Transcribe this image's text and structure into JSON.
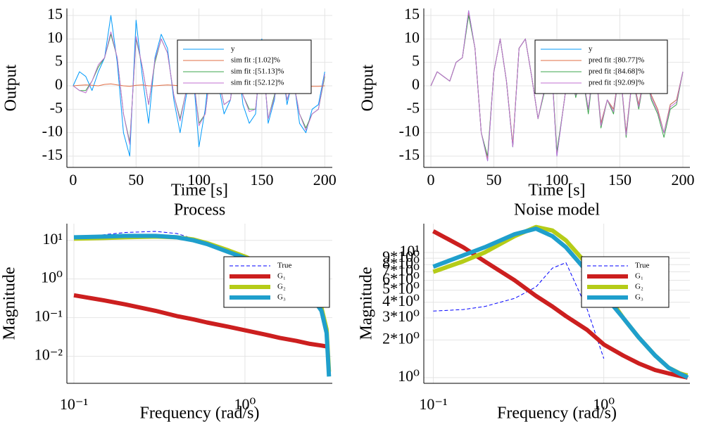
{
  "chart_data": [
    {
      "type": "line",
      "xlabel": "Time [s]",
      "ylabel": "Output",
      "x": [
        0,
        5,
        10,
        15,
        20,
        25,
        30,
        35,
        40,
        45,
        50,
        55,
        60,
        65,
        70,
        75,
        80,
        85,
        90,
        95,
        100,
        105,
        110,
        115,
        120,
        125,
        130,
        135,
        140,
        145,
        150,
        155,
        160,
        165,
        170,
        175,
        180,
        185,
        190,
        195,
        200
      ],
      "series": [
        {
          "name": "y",
          "color": "#009afa",
          "values": [
            0,
            3,
            2,
            -1,
            3,
            6,
            15,
            5,
            -10,
            -15,
            14,
            2,
            -8,
            6,
            11,
            8,
            -3,
            -10,
            -2,
            4,
            -13,
            -5,
            8,
            1,
            -6,
            -3,
            8,
            -4,
            -8,
            -6,
            10,
            -8,
            -3,
            7,
            -4,
            2,
            -8,
            -10,
            -5,
            -4,
            3
          ]
        },
        {
          "name": "sim fit :[1.02]%",
          "color": "#e26f46",
          "values": [
            0,
            0.1,
            0.2,
            0.1,
            0,
            0.3,
            0.4,
            0.2,
            0,
            -0.1,
            0.1,
            0.2,
            0,
            0,
            0.1,
            0.2,
            0.1,
            0,
            -0.1,
            0,
            -0.2,
            -0.1,
            0,
            0.1,
            0,
            -0.1,
            0,
            0.1,
            -0.1,
            -0.2,
            0,
            -0.1,
            0,
            0.1,
            0,
            -0.1,
            -0.2,
            -0.2,
            -0.1,
            -0.1,
            0
          ]
        },
        {
          "name": "sim fit :[51.13]%",
          "color": "#3da44d",
          "values": [
            0,
            -1,
            -1,
            1,
            4,
            6,
            11,
            6,
            -6,
            -12,
            10,
            4,
            -4,
            5,
            10,
            7,
            -2,
            -7,
            -1,
            3,
            -8,
            -6,
            5,
            2,
            -4,
            -3,
            6,
            -2,
            -5,
            -5,
            8,
            -7,
            -2,
            5,
            -3,
            1,
            -6,
            -9,
            -6,
            -5,
            2
          ]
        },
        {
          "name": "sim fit :[52.12]%",
          "color": "#c271d2",
          "values": [
            0,
            -1,
            -1.5,
            1,
            4.5,
            6,
            11.5,
            6,
            -6,
            -12.5,
            10.5,
            4,
            -4,
            5.5,
            10,
            7,
            -2,
            -7.5,
            -1,
            3,
            -8.5,
            -6,
            5,
            2,
            -4,
            -3,
            6.5,
            -2,
            -5.5,
            -5,
            8,
            -7,
            -2.5,
            5,
            -3,
            1,
            -6,
            -9.5,
            -6,
            -5,
            2.5
          ]
        }
      ],
      "xlim": [
        -5,
        206
      ],
      "xticks": [
        0,
        50,
        100,
        150,
        200
      ],
      "ylim": [
        -17.4,
        16.5
      ],
      "yticks": [
        -15,
        -10,
        -5,
        0,
        5,
        10,
        15
      ],
      "grid": true,
      "legend": "top-right"
    },
    {
      "type": "line",
      "xlabel": "Time [s]",
      "ylabel": "Output",
      "x": [
        0,
        5,
        10,
        15,
        20,
        25,
        30,
        35,
        40,
        45,
        50,
        55,
        60,
        65,
        70,
        75,
        80,
        85,
        90,
        95,
        100,
        105,
        110,
        115,
        120,
        125,
        130,
        135,
        140,
        145,
        150,
        155,
        160,
        165,
        170,
        175,
        180,
        185,
        190,
        195,
        200
      ],
      "series": [
        {
          "name": "y",
          "color": "#009afa",
          "values": [
            0,
            3,
            2,
            1,
            5,
            6,
            16,
            8,
            -10,
            -16,
            3,
            10,
            1,
            -13,
            8,
            10,
            2,
            -7,
            -1,
            8,
            -15,
            -5,
            5,
            -2,
            3,
            -5,
            6,
            -8,
            -3,
            -5,
            4,
            -10,
            2,
            -4,
            3,
            -2,
            -5,
            -10,
            -4,
            -3,
            3
          ]
        },
        {
          "name": "pred fit :[80.77]%",
          "color": "#e26f46",
          "values": [
            0,
            3,
            2,
            1,
            5,
            6,
            15.5,
            8,
            -10,
            -15.5,
            3,
            10,
            1,
            -12.5,
            8,
            10,
            2,
            -7,
            -1,
            8,
            -14.5,
            -5,
            5,
            -2,
            3,
            -5,
            6,
            -8,
            -3,
            -5,
            4,
            -10,
            2,
            -4,
            3,
            -2,
            -5,
            -10,
            -4,
            -3,
            3
          ]
        },
        {
          "name": "pred fit :[84.68]%",
          "color": "#3da44d",
          "values": [
            0,
            3,
            2,
            1,
            5,
            6,
            15,
            8,
            -10,
            -15,
            3,
            10,
            1,
            -13,
            8,
            10,
            2,
            -7,
            -1.5,
            8,
            -14,
            -5,
            5,
            -2.5,
            3,
            -6,
            6,
            -9,
            -3,
            -6,
            4,
            -11,
            2,
            -5,
            3,
            -3,
            -6,
            -11,
            -5,
            -4,
            3
          ]
        },
        {
          "name": "pred fit :[92.09]%",
          "color": "#c271d2",
          "values": [
            0,
            3,
            2,
            1,
            5,
            6,
            16,
            8,
            -10,
            -16,
            3,
            10,
            1,
            -13,
            8,
            10,
            2,
            -7,
            -1,
            8,
            -15,
            -5,
            5,
            -2,
            3,
            -5,
            6,
            -8.5,
            -3,
            -5.5,
            4,
            -10.5,
            2,
            -4.5,
            3,
            -2.5,
            -5.5,
            -10,
            -4.5,
            -3.5,
            3
          ]
        }
      ],
      "xlim": [
        -5.6,
        205.6
      ],
      "xticks": [
        0,
        50,
        100,
        150,
        200
      ],
      "ylim": [
        -17.4,
        16.5
      ],
      "yticks": [
        -15,
        -10,
        -5,
        0,
        5,
        10,
        15
      ],
      "grid": true,
      "legend": "top-right"
    },
    {
      "type": "line",
      "title": "Process",
      "xlabel": "Frequency (rad/s)",
      "ylabel": "Magnitude",
      "x": [
        0.1,
        0.15,
        0.2,
        0.3,
        0.4,
        0.5,
        0.6,
        0.8,
        1.0,
        1.3,
        1.6,
        2.0,
        2.4,
        2.8,
        3.0,
        3.1
      ],
      "series": [
        {
          "name": "True",
          "color": "#0000ff",
          "linestyle": "dash",
          "values": [
            12,
            14,
            16,
            17,
            15,
            11,
            8,
            5.2,
            3.5,
            2.1,
            1.35,
            0.75,
            0.4,
            0.15,
            0.05,
            0.01
          ]
        },
        {
          "name": "G₁",
          "color": "#cc1f1f",
          "values": [
            0.38,
            0.28,
            0.22,
            0.15,
            0.11,
            0.09,
            0.075,
            0.058,
            0.047,
            0.037,
            0.03,
            0.025,
            0.021,
            0.019,
            0.018,
            0.018
          ]
        },
        {
          "name": "G₂",
          "color": "#b5cc18",
          "values": [
            11,
            11.5,
            12,
            12.5,
            12,
            10.5,
            8.5,
            5.5,
            3.8,
            2.3,
            1.5,
            0.85,
            0.45,
            0.18,
            0.05,
            0.004
          ]
        },
        {
          "name": "G₃",
          "color": "#1f9fcc",
          "values": [
            12,
            12.5,
            13,
            13,
            12,
            10,
            8,
            5,
            3.5,
            2.1,
            1.35,
            0.75,
            0.4,
            0.15,
            0.04,
            0.003
          ]
        }
      ],
      "xlog": true,
      "ylog": true,
      "xlim": [
        0.091,
        3.24
      ],
      "xticks": [
        {
          "value": 0.1,
          "label": "10⁻¹"
        },
        {
          "value": 1,
          "label": "10⁰"
        }
      ],
      "ylim": [
        0.002,
        27
      ],
      "yticks": [
        {
          "value": 0.01,
          "label": "10⁻²"
        },
        {
          "value": 0.1,
          "label": "10⁻¹"
        },
        {
          "value": 1,
          "label": "10⁰"
        },
        {
          "value": 10,
          "label": "10¹"
        }
      ],
      "grid": true,
      "legend": "right"
    },
    {
      "type": "line",
      "title": "Noise model",
      "xlabel": "Frequency (rad/s)",
      "ylabel": "Magnitude",
      "x": [
        0.1,
        0.15,
        0.2,
        0.3,
        0.4,
        0.5,
        0.6,
        0.8,
        1.0,
        1.3,
        1.6,
        2.0,
        2.4,
        2.8,
        3.0,
        3.1
      ],
      "series": [
        {
          "name": "True",
          "color": "#0000ff",
          "linestyle": "dash",
          "values": [
            3.4,
            3.5,
            3.7,
            4.3,
            5.3,
            7.5,
            8.3,
            3.5,
            1.42,
            null,
            null,
            null,
            null,
            null,
            null,
            null
          ]
        },
        {
          "name": "G₁",
          "color": "#cc1f1f",
          "values": [
            14.8,
            11,
            8.5,
            6,
            4.5,
            3.7,
            3.1,
            2.4,
            1.84,
            1.5,
            1.3,
            1.15,
            1.08,
            1.03,
            1.01,
            1.0
          ]
        },
        {
          "name": "G₂",
          "color": "#b5cc18",
          "values": [
            7,
            8.5,
            10,
            13.5,
            16,
            15,
            12.5,
            8,
            5,
            3,
            2.1,
            1.5,
            1.2,
            1.08,
            1.05,
            1.04
          ]
        },
        {
          "name": "G₃",
          "color": "#1f9fcc",
          "values": [
            7.7,
            9.5,
            11,
            14,
            15.5,
            13.5,
            11,
            7,
            4.6,
            3,
            2.1,
            1.5,
            1.2,
            1.07,
            1.03,
            1.0
          ]
        }
      ],
      "xlog": true,
      "ylog": true,
      "xlim": [
        0.088,
        3.2
      ],
      "xticks": [
        {
          "value": 0.1,
          "label": "10⁻¹"
        },
        {
          "value": 1,
          "label": "10⁰"
        }
      ],
      "ylim": [
        0.9,
        17
      ],
      "yticks": [
        {
          "value": 1,
          "label": "10⁰"
        },
        {
          "value": 2,
          "label": "2*10⁰"
        },
        {
          "value": 3,
          "label": "3*10⁰"
        },
        {
          "value": 4,
          "label": "4*10⁰"
        },
        {
          "value": 5,
          "label": "5*10⁰"
        },
        {
          "value": 6,
          "label": "6*10⁰"
        },
        {
          "value": 7,
          "label": "7*10⁰"
        },
        {
          "value": 8,
          "label": "8*10⁰"
        },
        {
          "value": 9,
          "label": "9*10⁰"
        },
        {
          "value": 10,
          "label": "10¹"
        }
      ],
      "grid": true,
      "legend": "right"
    }
  ]
}
